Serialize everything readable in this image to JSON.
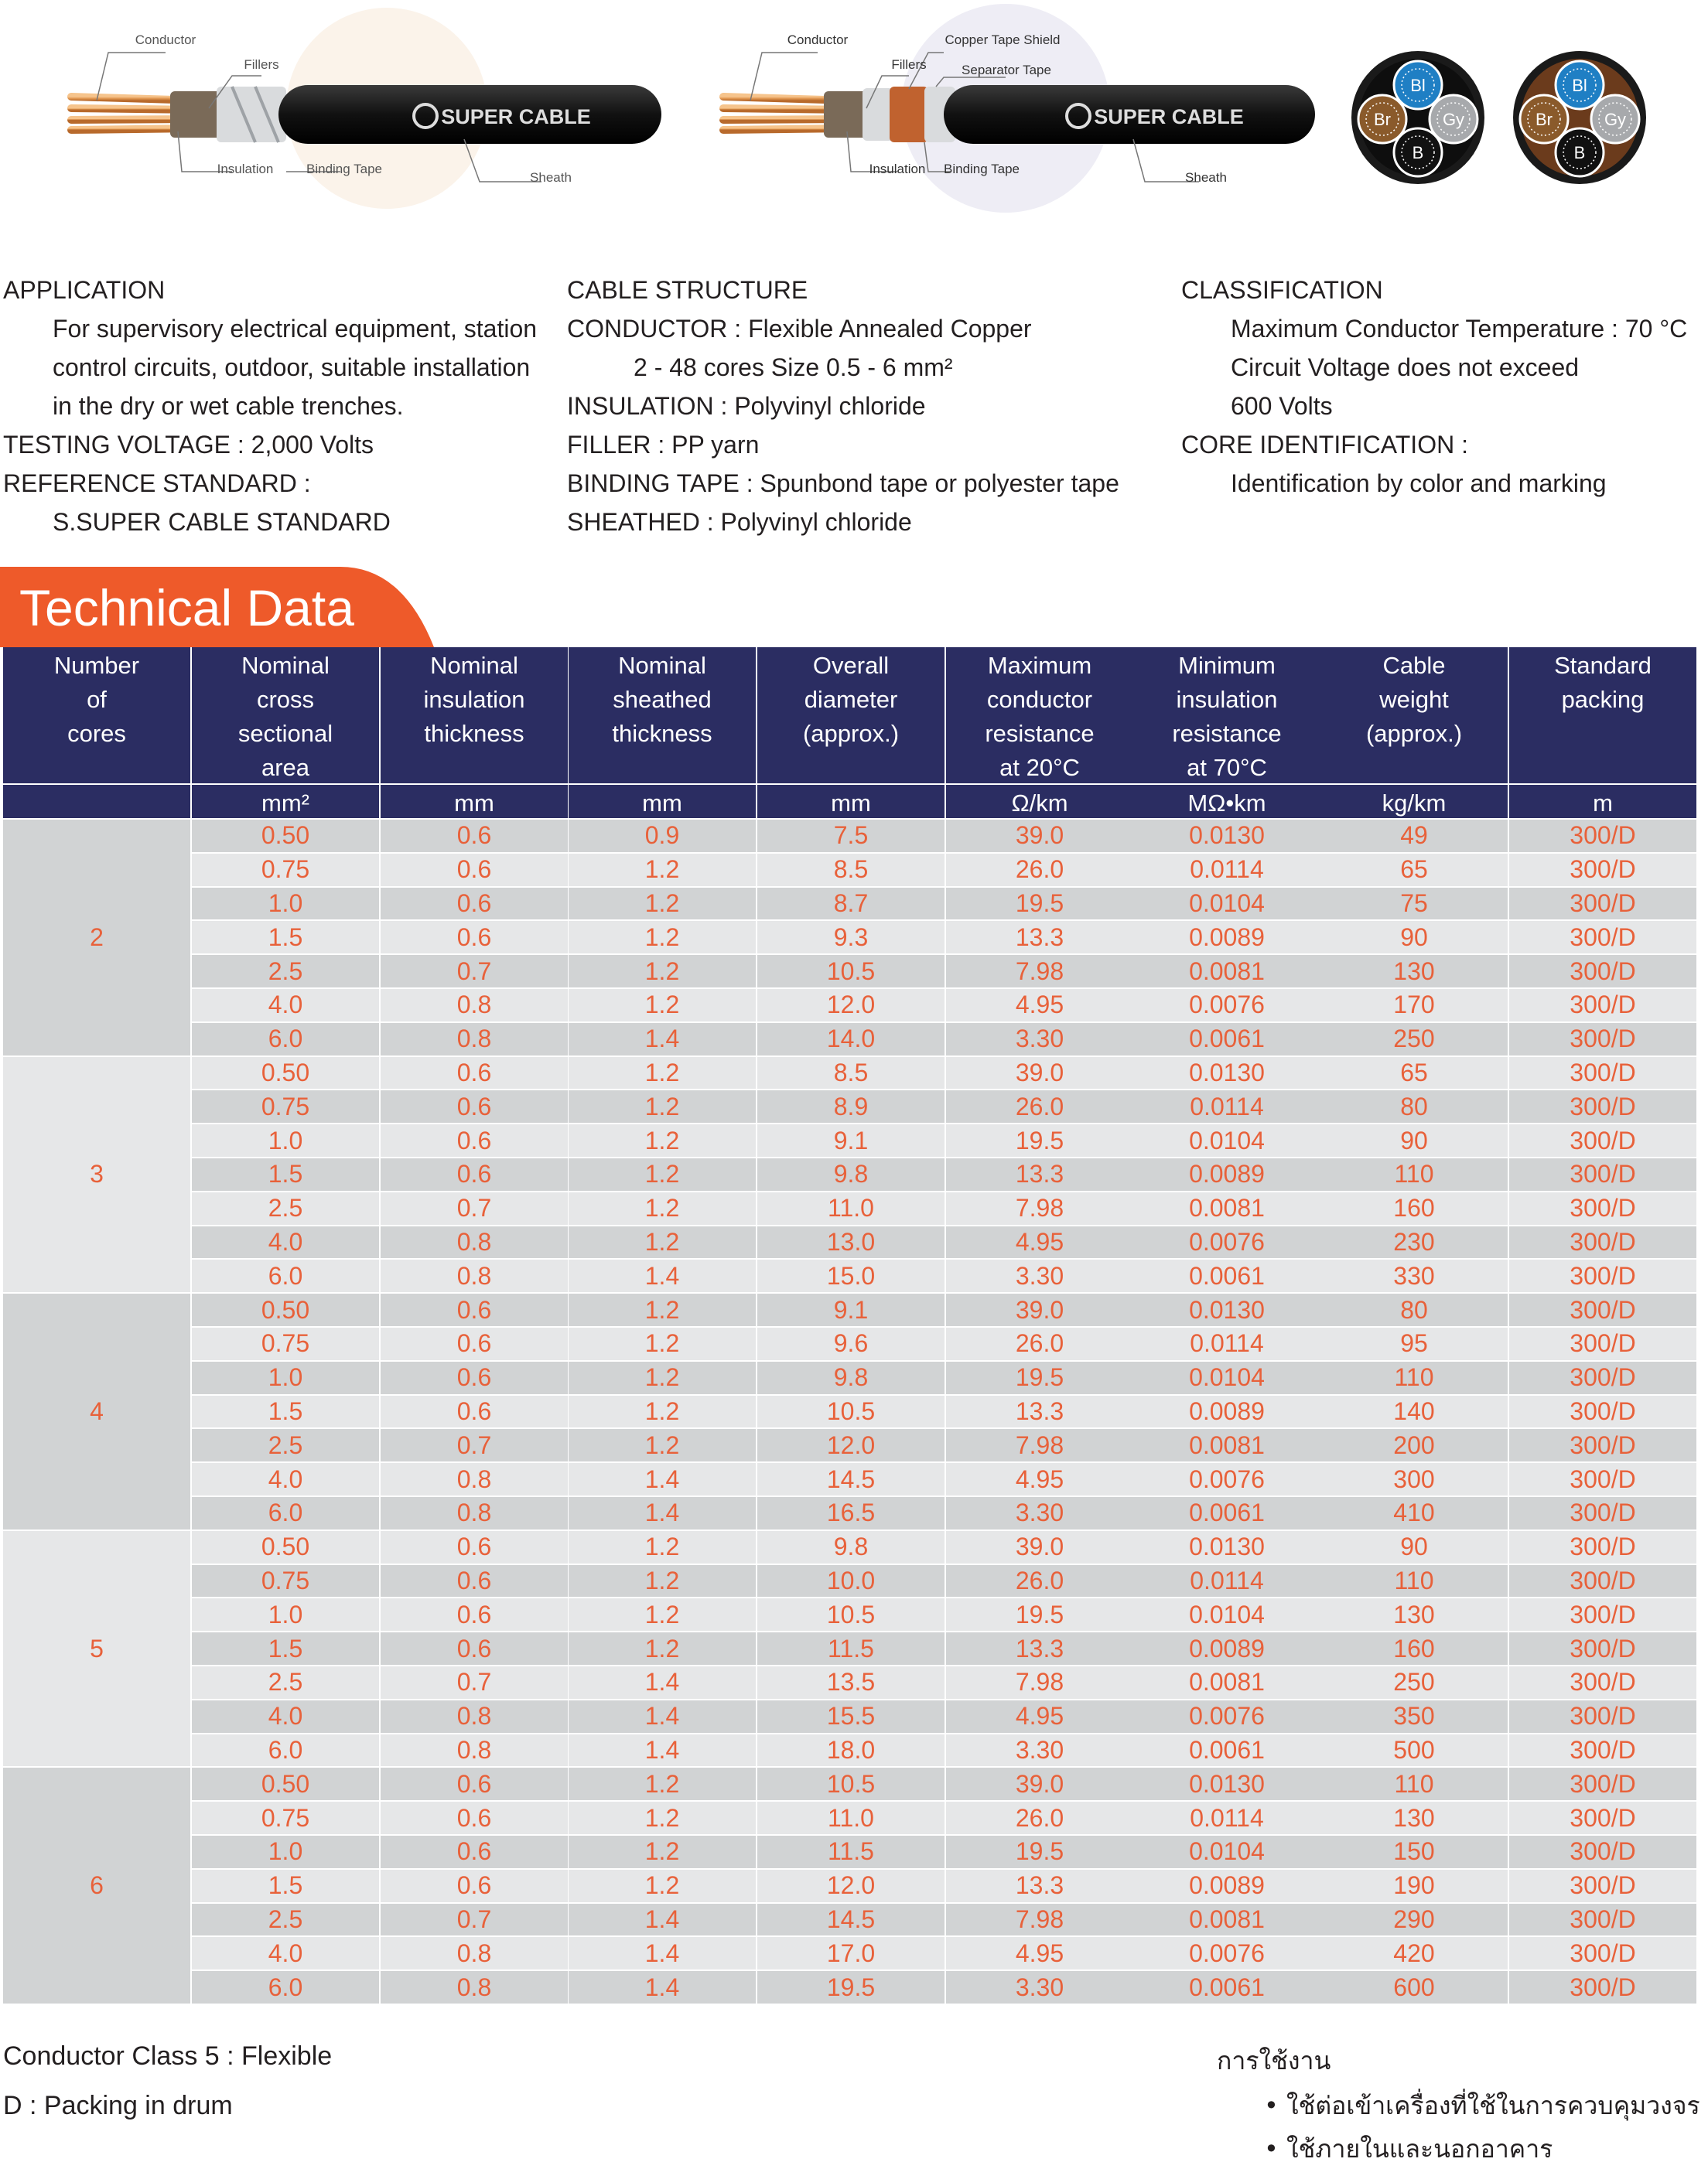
{
  "figures": {
    "cable_1": {
      "brand": "SUPER CABLE",
      "labels": [
        "Conductor",
        "Fillers",
        "Insulation",
        "Binding Tape",
        "Sheath"
      ]
    },
    "cable_2": {
      "brand": "SUPER CABLE",
      "labels": [
        "Conductor",
        "Copper Tape Shield",
        "Fillers",
        "Separator Tape",
        "Insulation",
        "Binding Tape",
        "Sheath"
      ]
    },
    "core_colors": [
      "Bl",
      "Br",
      "Gy",
      "B"
    ]
  },
  "specs": [
    [
      {
        "label": "APPLICATION",
        "lines": [
          "For supervisory electrical equipment, station",
          "control circuits, outdoor, suitable installation",
          "in the dry or wet cable trenches."
        ]
      },
      {
        "label": "TESTING VOLTAGE :",
        "text": "2,000 Volts"
      },
      {
        "label": "REFERENCE STANDARD :",
        "lines": [
          "S.SUPER CABLE STANDARD"
        ]
      }
    ],
    [
      {
        "label": "CABLE STRUCTURE"
      },
      {
        "label": "CONDUCTOR :",
        "text": "Flexible  Annealed  Copper",
        "lines": [
          "2 - 48 cores  Size  0.5 - 6 mm²"
        ]
      },
      {
        "label": "INSULATION  :",
        "text": "Polyvinyl chloride"
      },
      {
        "label": "FILLER :",
        "text": "PP yarn"
      },
      {
        "label": "BINDING TAPE :",
        "text": "Spunbond tape or polyester tape"
      },
      {
        "label": "SHEATHED :",
        "text": "Polyvinyl  chloride"
      }
    ],
    [
      {
        "label": "CLASSIFICATION",
        "lines": [
          "Maximum Conductor Temperature : 70 °C",
          "Circuit  Voltage  does  not  exceed",
          "600 Volts"
        ]
      },
      {
        "label": "CORE  IDENTIFICATION :",
        "lines": [
          "Identification  by  color  and  marking"
        ]
      }
    ]
  ],
  "table": {
    "title": "Technical Data",
    "header": [
      [
        "Number",
        "of",
        "cores"
      ],
      [
        "Nominal",
        "cross",
        "sectional",
        "area"
      ],
      [
        "Nominal",
        "insulation",
        "thickness"
      ],
      [
        "Nominal",
        "sheathed",
        "thickness"
      ],
      [
        "Overall",
        "diameter",
        "(approx.)"
      ],
      [
        "Maximum",
        "conductor",
        "resistance",
        "at 20°C"
      ],
      [
        "Minimum",
        "insulation",
        "resistance",
        "at 70°C"
      ],
      [
        "Cable",
        "weight",
        "(approx.)"
      ],
      [
        "Standard",
        "packing"
      ]
    ],
    "units": [
      "mm²",
      "mm",
      "mm",
      "mm",
      "Ω/km",
      "MΩ•km",
      "kg/km",
      "m"
    ],
    "groups": [
      {
        "cores": "2",
        "rows": [
          [
            "0.50",
            "0.6",
            "0.9",
            "7.5",
            "39.0",
            "0.0130",
            "49",
            "300/D"
          ],
          [
            "0.75",
            "0.6",
            "1.2",
            "8.5",
            "26.0",
            "0.0114",
            "65",
            "300/D"
          ],
          [
            "1.0",
            "0.6",
            "1.2",
            "8.7",
            "19.5",
            "0.0104",
            "75",
            "300/D"
          ],
          [
            "1.5",
            "0.6",
            "1.2",
            "9.3",
            "13.3",
            "0.0089",
            "90",
            "300/D"
          ],
          [
            "2.5",
            "0.7",
            "1.2",
            "10.5",
            "7.98",
            "0.0081",
            "130",
            "300/D"
          ],
          [
            "4.0",
            "0.8",
            "1.2",
            "12.0",
            "4.95",
            "0.0076",
            "170",
            "300/D"
          ],
          [
            "6.0",
            "0.8",
            "1.4",
            "14.0",
            "3.30",
            "0.0061",
            "250",
            "300/D"
          ]
        ]
      },
      {
        "cores": "3",
        "rows": [
          [
            "0.50",
            "0.6",
            "1.2",
            "8.5",
            "39.0",
            "0.0130",
            "65",
            "300/D"
          ],
          [
            "0.75",
            "0.6",
            "1.2",
            "8.9",
            "26.0",
            "0.0114",
            "80",
            "300/D"
          ],
          [
            "1.0",
            "0.6",
            "1.2",
            "9.1",
            "19.5",
            "0.0104",
            "90",
            "300/D"
          ],
          [
            "1.5",
            "0.6",
            "1.2",
            "9.8",
            "13.3",
            "0.0089",
            "110",
            "300/D"
          ],
          [
            "2.5",
            "0.7",
            "1.2",
            "11.0",
            "7.98",
            "0.0081",
            "160",
            "300/D"
          ],
          [
            "4.0",
            "0.8",
            "1.2",
            "13.0",
            "4.95",
            "0.0076",
            "230",
            "300/D"
          ],
          [
            "6.0",
            "0.8",
            "1.4",
            "15.0",
            "3.30",
            "0.0061",
            "330",
            "300/D"
          ]
        ]
      },
      {
        "cores": "4",
        "rows": [
          [
            "0.50",
            "0.6",
            "1.2",
            "9.1",
            "39.0",
            "0.0130",
            "80",
            "300/D"
          ],
          [
            "0.75",
            "0.6",
            "1.2",
            "9.6",
            "26.0",
            "0.0114",
            "95",
            "300/D"
          ],
          [
            "1.0",
            "0.6",
            "1.2",
            "9.8",
            "19.5",
            "0.0104",
            "110",
            "300/D"
          ],
          [
            "1.5",
            "0.6",
            "1.2",
            "10.5",
            "13.3",
            "0.0089",
            "140",
            "300/D"
          ],
          [
            "2.5",
            "0.7",
            "1.2",
            "12.0",
            "7.98",
            "0.0081",
            "200",
            "300/D"
          ],
          [
            "4.0",
            "0.8",
            "1.4",
            "14.5",
            "4.95",
            "0.0076",
            "300",
            "300/D"
          ],
          [
            "6.0",
            "0.8",
            "1.4",
            "16.5",
            "3.30",
            "0.0061",
            "410",
            "300/D"
          ]
        ]
      },
      {
        "cores": "5",
        "rows": [
          [
            "0.50",
            "0.6",
            "1.2",
            "9.8",
            "39.0",
            "0.0130",
            "90",
            "300/D"
          ],
          [
            "0.75",
            "0.6",
            "1.2",
            "10.0",
            "26.0",
            "0.0114",
            "110",
            "300/D"
          ],
          [
            "1.0",
            "0.6",
            "1.2",
            "10.5",
            "19.5",
            "0.0104",
            "130",
            "300/D"
          ],
          [
            "1.5",
            "0.6",
            "1.2",
            "11.5",
            "13.3",
            "0.0089",
            "160",
            "300/D"
          ],
          [
            "2.5",
            "0.7",
            "1.4",
            "13.5",
            "7.98",
            "0.0081",
            "250",
            "300/D"
          ],
          [
            "4.0",
            "0.8",
            "1.4",
            "15.5",
            "4.95",
            "0.0076",
            "350",
            "300/D"
          ],
          [
            "6.0",
            "0.8",
            "1.4",
            "18.0",
            "3.30",
            "0.0061",
            "500",
            "300/D"
          ]
        ]
      },
      {
        "cores": "6",
        "rows": [
          [
            "0.50",
            "0.6",
            "1.2",
            "10.5",
            "39.0",
            "0.0130",
            "110",
            "300/D"
          ],
          [
            "0.75",
            "0.6",
            "1.2",
            "11.0",
            "26.0",
            "0.0114",
            "130",
            "300/D"
          ],
          [
            "1.0",
            "0.6",
            "1.2",
            "11.5",
            "19.5",
            "0.0104",
            "150",
            "300/D"
          ],
          [
            "1.5",
            "0.6",
            "1.2",
            "12.0",
            "13.3",
            "0.0089",
            "190",
            "300/D"
          ],
          [
            "2.5",
            "0.7",
            "1.4",
            "14.5",
            "7.98",
            "0.0081",
            "290",
            "300/D"
          ],
          [
            "4.0",
            "0.8",
            "1.4",
            "17.0",
            "4.95",
            "0.0076",
            "420",
            "300/D"
          ],
          [
            "6.0",
            "0.8",
            "1.4",
            "19.5",
            "3.30",
            "0.0061",
            "600",
            "300/D"
          ]
        ]
      }
    ]
  },
  "footer": {
    "notes": [
      "Conductor Class 5 : Flexible",
      "D : Packing in  drum"
    ],
    "usage_title": "การใช้งาน",
    "usage": [
      "• ใช้ต่อเข้าเครื่องที่ใช้ในการควบคุมวงจร",
      "• ใช้ภายในและนอกอาคาร"
    ]
  }
}
